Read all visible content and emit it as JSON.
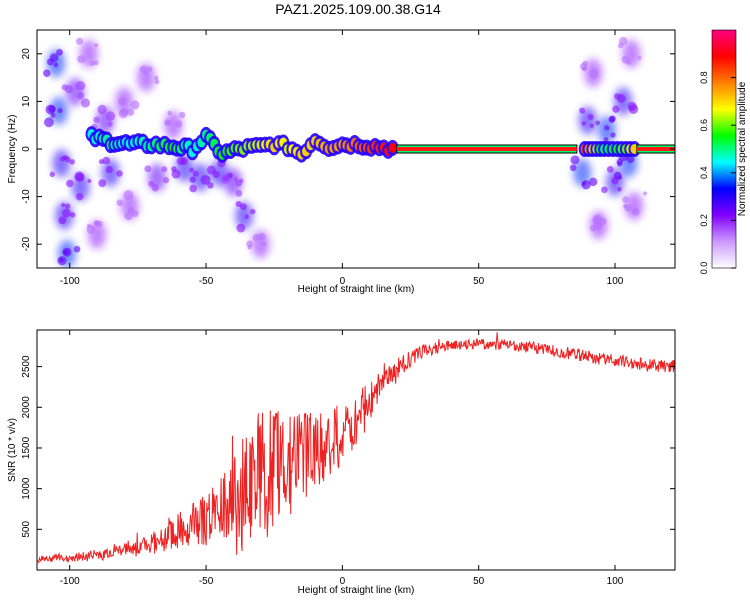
{
  "figure_title": "PAZ1.2025.109.00.38.G14",
  "chart_data": [
    {
      "type": "heatmap",
      "xlabel": "Height of straight line (km)",
      "ylabel": "Frequency (Hz)",
      "xlim": [
        -112,
        122
      ],
      "ylim": [
        -25,
        25
      ],
      "xticks": [
        -100,
        -50,
        0,
        50,
        100
      ],
      "yticks": [
        -20,
        -10,
        0,
        10,
        20
      ],
      "colorbar": {
        "label": "Normalized spectral amplitude",
        "range": [
          0,
          1
        ],
        "ticks": [
          0.0,
          0.2,
          0.4,
          0.6,
          0.8
        ],
        "colors": [
          "#ffffff",
          "#cc99ff",
          "#8000ff",
          "#0000ff",
          "#00ffff",
          "#00ff00",
          "#ffff00",
          "#ff8000",
          "#ff0000",
          "#ff0080"
        ]
      },
      "ridge": [
        {
          "x": -92,
          "y": 2.5,
          "level": 0.45
        },
        {
          "x": -85,
          "y": 1.5,
          "level": 0.5
        },
        {
          "x": -78,
          "y": 1,
          "level": 0.45
        },
        {
          "x": -70,
          "y": 1,
          "level": 0.5
        },
        {
          "x": -62,
          "y": 0.5,
          "level": 0.55
        },
        {
          "x": -55,
          "y": 0,
          "level": 0.45
        },
        {
          "x": -50,
          "y": 2.5,
          "level": 0.5
        },
        {
          "x": -44,
          "y": -1,
          "level": 0.55
        },
        {
          "x": -38,
          "y": 0,
          "level": 0.6
        },
        {
          "x": -30,
          "y": 0.5,
          "level": 0.65
        },
        {
          "x": -25,
          "y": 1,
          "level": 0.7
        },
        {
          "x": -20,
          "y": 0.5,
          "level": 0.65
        },
        {
          "x": -15,
          "y": -1,
          "level": 0.7
        },
        {
          "x": -10,
          "y": 2,
          "level": 0.7
        },
        {
          "x": -5,
          "y": 0.5,
          "level": 0.75
        },
        {
          "x": 0,
          "y": 1,
          "level": 0.75
        },
        {
          "x": 6,
          "y": 1,
          "level": 0.8
        },
        {
          "x": 12,
          "y": 0.5,
          "level": 0.85
        },
        {
          "x": 20,
          "y": 0,
          "level": 0.9
        },
        {
          "x": 40,
          "y": 0,
          "level": 0.95
        },
        {
          "x": 60,
          "y": 0,
          "level": 0.95
        },
        {
          "x": 86,
          "y": 0,
          "level": 0.95
        },
        {
          "x": 96,
          "y": 0,
          "level": 0.5
        },
        {
          "x": 104,
          "y": 0,
          "level": 0.6
        },
        {
          "x": 115,
          "y": 0,
          "level": 0.95
        },
        {
          "x": 122,
          "y": 0,
          "level": 0.95
        }
      ],
      "spread_blobs": [
        {
          "x": -105,
          "y": 18,
          "level": 0.35
        },
        {
          "x": -104,
          "y": 8,
          "level": 0.35
        },
        {
          "x": -103,
          "y": -3,
          "level": 0.3
        },
        {
          "x": -102,
          "y": -14,
          "level": 0.3
        },
        {
          "x": -101,
          "y": -22,
          "level": 0.35
        },
        {
          "x": -98,
          "y": 12,
          "level": 0.25
        },
        {
          "x": -96,
          "y": -8,
          "level": 0.3
        },
        {
          "x": -93,
          "y": 20,
          "level": 0.2
        },
        {
          "x": -90,
          "y": -18,
          "level": 0.2
        },
        {
          "x": -87,
          "y": 6,
          "level": 0.25
        },
        {
          "x": -85,
          "y": -5,
          "level": 0.3
        },
        {
          "x": -80,
          "y": 10,
          "level": 0.2
        },
        {
          "x": -78,
          "y": -12,
          "level": 0.2
        },
        {
          "x": -72,
          "y": 15,
          "level": 0.2
        },
        {
          "x": -68,
          "y": -6,
          "level": 0.25
        },
        {
          "x": -62,
          "y": 5,
          "level": 0.2
        },
        {
          "x": -58,
          "y": -4,
          "level": 0.3
        },
        {
          "x": -52,
          "y": -6,
          "level": 0.3
        },
        {
          "x": -45,
          "y": -5,
          "level": 0.3
        },
        {
          "x": -40,
          "y": -7,
          "level": 0.25
        },
        {
          "x": -36,
          "y": -14,
          "level": 0.3
        },
        {
          "x": -30,
          "y": -20,
          "level": 0.2
        },
        {
          "x": 88,
          "y": -5,
          "level": 0.35
        },
        {
          "x": 90,
          "y": 6,
          "level": 0.3
        },
        {
          "x": 92,
          "y": 16,
          "level": 0.2
        },
        {
          "x": 94,
          "y": -16,
          "level": 0.2
        },
        {
          "x": 97,
          "y": 4,
          "level": 0.35
        },
        {
          "x": 100,
          "y": -7,
          "level": 0.3
        },
        {
          "x": 103,
          "y": 10,
          "level": 0.3
        },
        {
          "x": 105,
          "y": -3,
          "level": 0.35
        },
        {
          "x": 106,
          "y": 20,
          "level": 0.2
        },
        {
          "x": 107,
          "y": -12,
          "level": 0.2
        }
      ]
    },
    {
      "type": "line",
      "xlabel": "Height of straight line (km)",
      "ylabel": "SNR (10 * v/v)",
      "xlim": [
        -112,
        122
      ],
      "ylim": [
        0,
        2950
      ],
      "xticks": [
        -100,
        -50,
        0,
        50,
        100
      ],
      "yticks": [
        500,
        1000,
        1500,
        2000,
        2500
      ],
      "color": "#ee2222",
      "series": [
        {
          "x": [
            -112,
            -100,
            -90,
            -80,
            -70,
            -60,
            -50,
            -45,
            -40,
            -35,
            -30,
            -25,
            -20,
            -15,
            -10,
            -5,
            0,
            5,
            10,
            15,
            20,
            25,
            30,
            35,
            40,
            45,
            50,
            55,
            60,
            65,
            70,
            75,
            80,
            85,
            90,
            95,
            100,
            105,
            110,
            115,
            122
          ],
          "mean": [
            130,
            150,
            180,
            230,
            320,
            480,
            620,
            760,
            900,
            1000,
            1100,
            1250,
            1300,
            1350,
            1450,
            1550,
            1700,
            1850,
            2050,
            2300,
            2450,
            2600,
            2700,
            2730,
            2760,
            2770,
            2780,
            2780,
            2770,
            2750,
            2730,
            2700,
            2680,
            2650,
            2620,
            2600,
            2570,
            2550,
            2520,
            2510,
            2500
          ],
          "spread": [
            40,
            50,
            70,
            90,
            130,
            220,
            320,
            420,
            550,
            700,
            800,
            750,
            650,
            600,
            500,
            450,
            400,
            350,
            250,
            200,
            150,
            100,
            80,
            70,
            60,
            60,
            70,
            70,
            70,
            70,
            70,
            70,
            80,
            80,
            80,
            80,
            80,
            80,
            80,
            80,
            80
          ]
        }
      ]
    }
  ]
}
